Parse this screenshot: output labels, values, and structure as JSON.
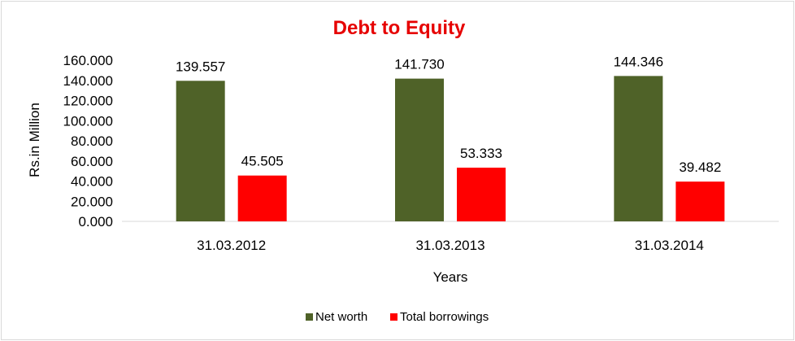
{
  "chart_data": {
    "type": "bar",
    "title": "Debt to Equity",
    "xlabel": "Years",
    "ylabel": "Rs.in Million",
    "categories": [
      "31.03.2012",
      "31.03.2013",
      "31.03.2014"
    ],
    "series": [
      {
        "name": "Net worth",
        "values": [
          139.557,
          141.73,
          144.346
        ],
        "labels": [
          "139.557",
          "141.730",
          "144.346"
        ],
        "color": "#4f6228"
      },
      {
        "name": "Total borrowings",
        "values": [
          45.505,
          53.333,
          39.482
        ],
        "labels": [
          "45.505",
          "53.333",
          "39.482"
        ],
        "color": "#ff0000"
      }
    ],
    "ylim": [
      0,
      160
    ],
    "yticks": [
      "0.000",
      "20.000",
      "40.000",
      "60.000",
      "80.000",
      "100.000",
      "120.000",
      "140.000",
      "160.000"
    ],
    "grid": false,
    "legend": "bottom",
    "colors": {
      "title": "#e60000",
      "axis": "#d9d9d9"
    }
  }
}
